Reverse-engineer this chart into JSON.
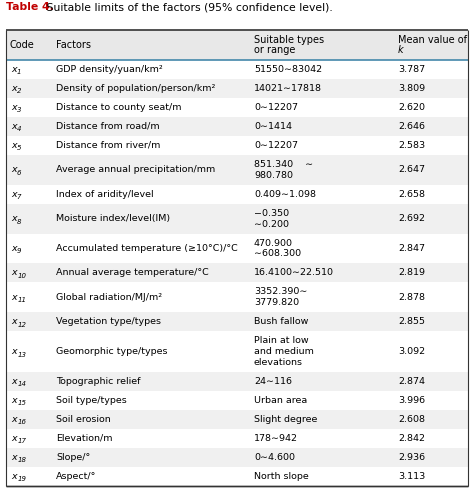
{
  "title_bold": "Table 4.",
  "title_rest": " Suitable limits of the factors (95% confidence level).",
  "col_headers": [
    [
      "Code",
      ""
    ],
    [
      "Factors",
      ""
    ],
    [
      "Suitable types",
      "or range"
    ],
    [
      "Mean value of",
      "k"
    ]
  ],
  "rows": [
    {
      "code": "x",
      "sub": "1",
      "factor": "GDP density/yuan/km²",
      "suitable": [
        "51550∼83042"
      ],
      "mean": "3.787",
      "bg": "white"
    },
    {
      "code": "x",
      "sub": "2",
      "factor": "Density of population/person/km²",
      "suitable": [
        "14021∼17818"
      ],
      "mean": "3.809",
      "bg": "gray"
    },
    {
      "code": "x",
      "sub": "3",
      "factor": "Distance to county seat/m",
      "suitable": [
        "0∼12207"
      ],
      "mean": "2.620",
      "bg": "white"
    },
    {
      "code": "x",
      "sub": "4",
      "factor": "Distance from road/m",
      "suitable": [
        "0∼1414"
      ],
      "mean": "2.646",
      "bg": "gray"
    },
    {
      "code": "x",
      "sub": "5",
      "factor": "Distance from river/m",
      "suitable": [
        "0∼12207"
      ],
      "mean": "2.583",
      "bg": "white"
    },
    {
      "code": "x",
      "sub": "6",
      "factor": "Average annual precipitation/mm",
      "suitable": [
        "851.340    ∼",
        "980.780"
      ],
      "mean": "2.647",
      "bg": "gray"
    },
    {
      "code": "x",
      "sub": "7",
      "factor": "Index of aridity/level",
      "suitable": [
        "0.409∼1.098"
      ],
      "mean": "2.658",
      "bg": "white"
    },
    {
      "code": "x",
      "sub": "8",
      "factor": "Moisture index/level(IM)",
      "suitable": [
        "−0.350",
        "∼0.200"
      ],
      "mean": "2.692",
      "bg": "gray"
    },
    {
      "code": "x",
      "sub": "9",
      "factor": "Accumulated temperature (≥10°C)/°C",
      "suitable": [
        "470.900",
        "∼608.300"
      ],
      "mean": "2.847",
      "bg": "white"
    },
    {
      "code": "x",
      "sub": "10",
      "factor": "Annual average temperature/°C",
      "suitable": [
        "16.4100∼22.510"
      ],
      "mean": "2.819",
      "bg": "gray"
    },
    {
      "code": "x",
      "sub": "11",
      "factor": "Global radiation/MJ/m²",
      "suitable": [
        "3352.390∼",
        "3779.820"
      ],
      "mean": "2.878",
      "bg": "white"
    },
    {
      "code": "x",
      "sub": "12",
      "factor": "Vegetation type/types",
      "suitable": [
        "Bush fallow"
      ],
      "mean": "2.855",
      "bg": "gray"
    },
    {
      "code": "x",
      "sub": "13",
      "factor": "Geomorphic type/types",
      "suitable": [
        "Plain at low",
        "and medium",
        "elevations"
      ],
      "mean": "3.092",
      "bg": "white"
    },
    {
      "code": "x",
      "sub": "14",
      "factor": "Topographic relief",
      "suitable": [
        "24∼116"
      ],
      "mean": "2.874",
      "bg": "gray"
    },
    {
      "code": "x",
      "sub": "15",
      "factor": "Soil type/types",
      "suitable": [
        "Urban area"
      ],
      "mean": "3.996",
      "bg": "white"
    },
    {
      "code": "x",
      "sub": "16",
      "factor": "Soil erosion",
      "suitable": [
        "Slight degree"
      ],
      "mean": "2.608",
      "bg": "gray"
    },
    {
      "code": "x",
      "sub": "17",
      "factor": "Elevation/m",
      "suitable": [
        "178∼942"
      ],
      "mean": "2.842",
      "bg": "white"
    },
    {
      "code": "x",
      "sub": "18",
      "factor": "Slope/°",
      "suitable": [
        "0∼4.600"
      ],
      "mean": "2.936",
      "bg": "gray"
    },
    {
      "code": "x",
      "sub": "19",
      "factor": "Aspect/°",
      "suitable": [
        "North slope"
      ],
      "mean": "3.113",
      "bg": "white"
    }
  ],
  "title_color": "#c00000",
  "header_bg": "#e8e8e8",
  "white_bg": "#ffffff",
  "gray_bg": "#f0f0f0",
  "border_color": "#555555",
  "figsize": [
    4.74,
    4.9
  ],
  "dpi": 100
}
